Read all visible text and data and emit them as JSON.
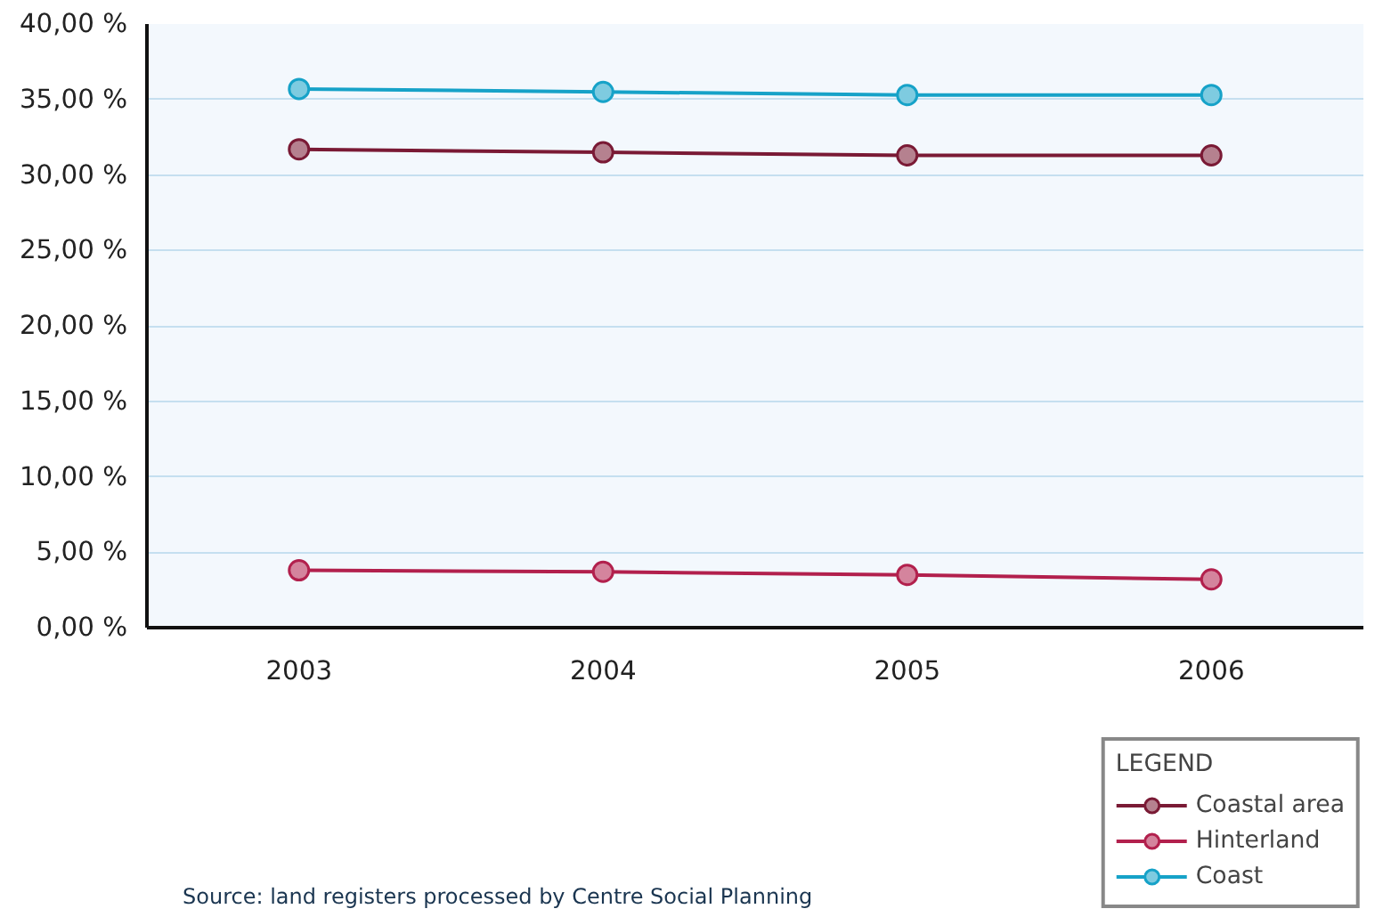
{
  "chart_data": {
    "type": "line",
    "categories": [
      "2003",
      "2004",
      "2005",
      "2006"
    ],
    "series": [
      {
        "name": "Coastal area",
        "color": "#7a1a35",
        "values": [
          31.7,
          31.5,
          31.3,
          31.3
        ]
      },
      {
        "name": "Hinterland",
        "color": "#b2204d",
        "values": [
          3.8,
          3.7,
          3.5,
          3.2
        ]
      },
      {
        "name": "Coast",
        "color": "#16a2c8",
        "values": [
          35.7,
          35.5,
          35.3,
          35.3
        ]
      }
    ],
    "ylim": [
      0,
      40
    ],
    "yticks": [
      {
        "value": 0,
        "label": "0,00 %"
      },
      {
        "value": 5,
        "label": "5,00 %"
      },
      {
        "value": 10,
        "label": "10,00 %"
      },
      {
        "value": 15,
        "label": "15,00 %"
      },
      {
        "value": 20,
        "label": "20,00 %"
      },
      {
        "value": 25,
        "label": "25,00 %"
      },
      {
        "value": 30,
        "label": "30,00 %"
      },
      {
        "value": 35,
        "label": "35,00 %"
      },
      {
        "value": 40,
        "label": "40,00 %"
      }
    ],
    "grid": "y",
    "marker": "circle",
    "line_style": "solid",
    "legend": "bottom right",
    "legend_title": "LEGEND",
    "annotations": [
      "Source: land registers processed by Centre Social Planning"
    ]
  }
}
